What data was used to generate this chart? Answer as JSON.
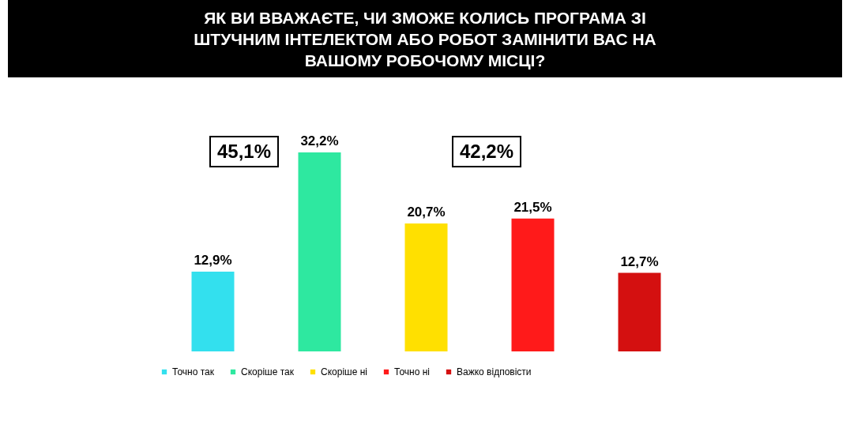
{
  "chart_data": {
    "type": "bar",
    "title": "ЯК ВИ ВВАЖАЄТЕ, ЧИ ЗМОЖЕ КОЛИСЬ ПРОГРАМА ЗІ ШТУЧНИМ ІНТЕЛЕКТОМ АБО РОБОТ ЗАМІНИТИ ВАС НА ВАШОМУ РОБОЧОМУ МІСЦІ?",
    "categories": [
      null,
      null,
      null,
      null,
      null
    ],
    "series": [
      {
        "name": "Точно так",
        "color": "#33e0ee",
        "values": [
          12.9,
          null,
          null,
          null,
          null
        ],
        "value_labels": [
          "12,9%",
          null,
          null,
          null,
          null
        ]
      },
      {
        "name": "Скоріше так",
        "color": "#2ee8a0",
        "values": [
          null,
          32.2,
          null,
          null,
          null
        ],
        "value_labels": [
          null,
          "32,2%",
          null,
          null,
          null
        ]
      },
      {
        "name": "Скоріше ні",
        "color": "#ffe000",
        "values": [
          null,
          null,
          20.7,
          null,
          null
        ],
        "value_labels": [
          null,
          null,
          "20,7%",
          null,
          null
        ]
      },
      {
        "name": "Точно ні",
        "color": "#ff1a1a",
        "values": [
          null,
          null,
          null,
          21.5,
          null
        ],
        "value_labels": [
          null,
          null,
          null,
          "21,5%",
          null
        ]
      },
      {
        "name": "Важко відповісти",
        "color": "#d41010",
        "values": [
          null,
          null,
          null,
          null,
          12.7
        ],
        "value_labels": [
          null,
          null,
          null,
          null,
          "12,7%"
        ]
      }
    ],
    "annotations": [
      "45,1%",
      "42,2%"
    ],
    "stacked": true,
    "legend": "bottom",
    "tick_labels": false
  }
}
